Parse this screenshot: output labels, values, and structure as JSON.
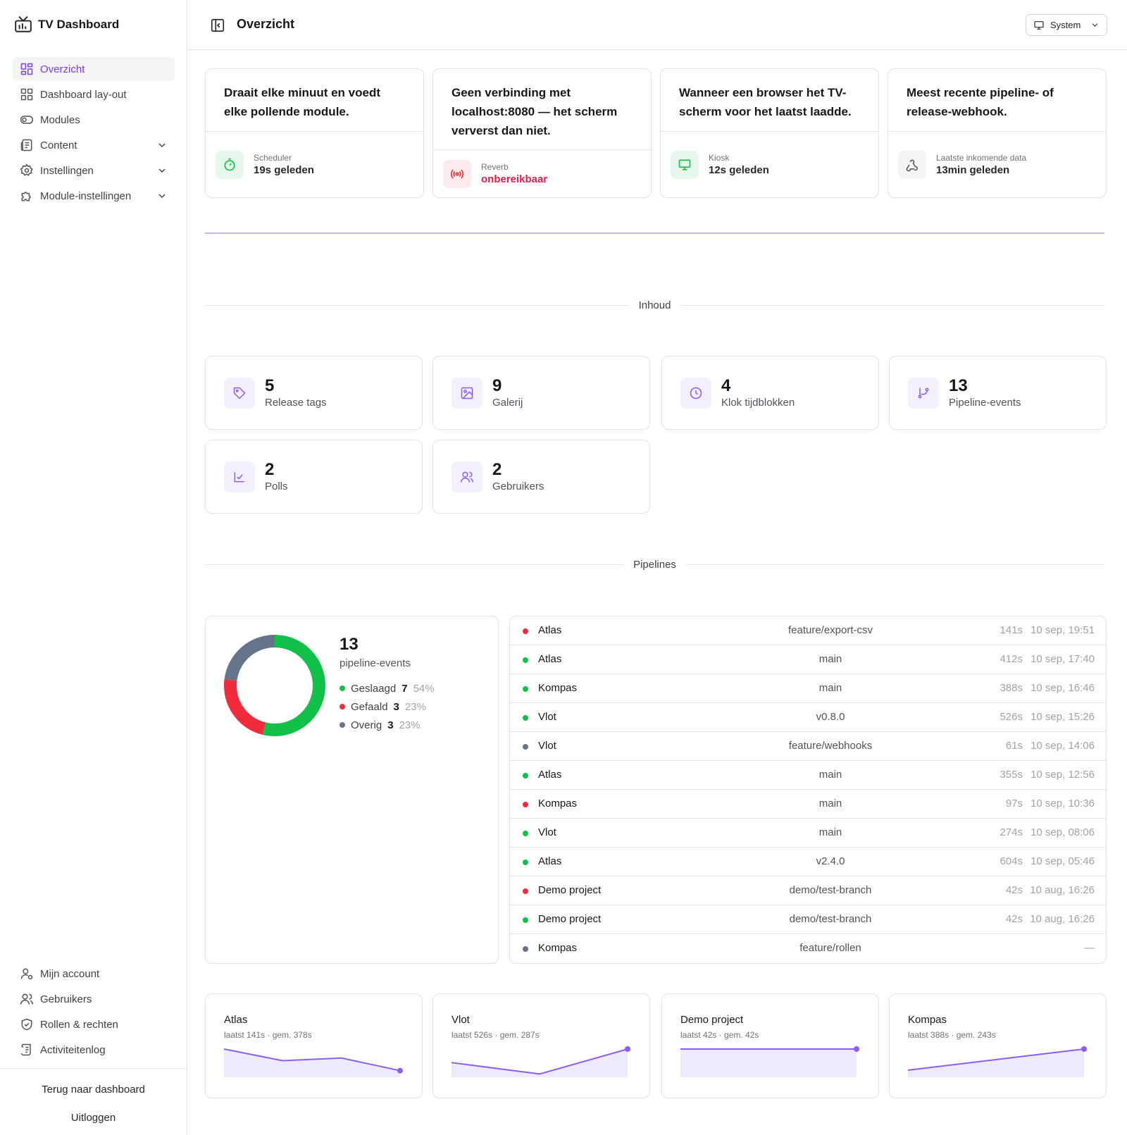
{
  "app": {
    "name": "TV Dashboard"
  },
  "nav": {
    "items": [
      {
        "label": "Overzicht",
        "icon": "grid-icon",
        "active": true,
        "expandable": false
      },
      {
        "label": "Dashboard lay-out",
        "icon": "layout-icon",
        "active": false,
        "expandable": false
      },
      {
        "label": "Modules",
        "icon": "toggle-icon",
        "active": false,
        "expandable": false
      },
      {
        "label": "Content",
        "icon": "document-icon",
        "active": false,
        "expandable": true
      },
      {
        "label": "Instellingen",
        "icon": "gear-icon",
        "active": false,
        "expandable": true
      },
      {
        "label": "Module-instellingen",
        "icon": "puzzle-icon",
        "active": false,
        "expandable": true
      }
    ],
    "bottom": [
      {
        "label": "Mijn account",
        "icon": "user-icon"
      },
      {
        "label": "Gebruikers",
        "icon": "users-icon"
      },
      {
        "label": "Rollen & rechten",
        "icon": "shield-icon"
      },
      {
        "label": "Activiteitenlog",
        "icon": "scroll-icon"
      }
    ],
    "footer": {
      "back": "Terug naar dashboard",
      "logout": "Uitloggen"
    }
  },
  "header": {
    "title": "Overzicht",
    "theme": "System"
  },
  "status_cards": [
    {
      "desc": "Draait elke minuut en voedt elke pollende module.",
      "key": "Scheduler",
      "value": "19s geleden",
      "icon": "timer-icon",
      "tone": "ok"
    },
    {
      "desc": "Geen verbinding met localhost:8080 — het scherm ververst dan niet.",
      "key": "Reverb",
      "value": "onbereikbaar",
      "icon": "broadcast-icon",
      "tone": "error"
    },
    {
      "desc": "Wanneer een browser het TV-scherm voor het laatst laadde.",
      "key": "Kiosk",
      "value": "12s geleden",
      "icon": "monitor-icon",
      "tone": "ok"
    },
    {
      "desc": "Meest recente pipeline- of release-webhook.",
      "key": "Laatste inkomende data",
      "value": "13min geleden",
      "icon": "webhook-icon",
      "tone": "neutral"
    }
  ],
  "sections": {
    "content": "Inhoud",
    "pipelines": "Pipelines"
  },
  "stats": [
    {
      "value": "5",
      "label": "Release tags",
      "icon": "tag-icon"
    },
    {
      "value": "9",
      "label": "Galerij",
      "icon": "image-icon"
    },
    {
      "value": "4",
      "label": "Klok tijdblokken",
      "icon": "clock-icon"
    },
    {
      "value": "13",
      "label": "Pipeline-events",
      "icon": "git-branch-icon"
    },
    {
      "value": "2",
      "label": "Polls",
      "icon": "poll-icon"
    },
    {
      "value": "2",
      "label": "Gebruikers",
      "icon": "users-icon"
    }
  ],
  "colors": {
    "accent": "#7c3aed",
    "success": "#10c048",
    "failed": "#ef2b3c",
    "other": "#64748b"
  },
  "pipeline_summary": {
    "total": "13",
    "label": "pipeline-events",
    "legend": [
      {
        "name": "Geslaagd",
        "count": 7,
        "pct": "54%",
        "color": "#10c048"
      },
      {
        "name": "Gefaald",
        "count": 3,
        "pct": "23%",
        "color": "#ef2b3c"
      },
      {
        "name": "Overig",
        "count": 3,
        "pct": "23%",
        "color": "#64748b"
      }
    ]
  },
  "pipelines": [
    {
      "status": "failed",
      "project": "Atlas",
      "branch": "feature/export-csv",
      "duration": "141s",
      "time": "10 sep, 19:51"
    },
    {
      "status": "success",
      "project": "Atlas",
      "branch": "main",
      "duration": "412s",
      "time": "10 sep, 17:40"
    },
    {
      "status": "success",
      "project": "Kompas",
      "branch": "main",
      "duration": "388s",
      "time": "10 sep, 16:46"
    },
    {
      "status": "success",
      "project": "Vlot",
      "branch": "v0.8.0",
      "duration": "526s",
      "time": "10 sep, 15:26"
    },
    {
      "status": "other",
      "project": "Vlot",
      "branch": "feature/webhooks",
      "duration": "61s",
      "time": "10 sep, 14:06"
    },
    {
      "status": "success",
      "project": "Atlas",
      "branch": "main",
      "duration": "355s",
      "time": "10 sep, 12:56"
    },
    {
      "status": "failed",
      "project": "Kompas",
      "branch": "main",
      "duration": "97s",
      "time": "10 sep, 10:36"
    },
    {
      "status": "success",
      "project": "Vlot",
      "branch": "main",
      "duration": "274s",
      "time": "10 sep, 08:06"
    },
    {
      "status": "success",
      "project": "Atlas",
      "branch": "v2.4.0",
      "duration": "604s",
      "time": "10 sep, 05:46"
    },
    {
      "status": "failed",
      "project": "Demo project",
      "branch": "demo/test-branch",
      "duration": "42s",
      "time": "10 aug, 16:26"
    },
    {
      "status": "success",
      "project": "Demo project",
      "branch": "demo/test-branch",
      "duration": "42s",
      "time": "10 aug, 16:26"
    },
    {
      "status": "other",
      "project": "Kompas",
      "branch": "feature/rollen",
      "duration": "",
      "time": "—"
    }
  ],
  "sparklines": [
    {
      "project": "Atlas",
      "stat": "laatst 141s · gem. 378s",
      "values": [
        604,
        355,
        412,
        141
      ]
    },
    {
      "project": "Vlot",
      "stat": "laatst 526s · gem. 287s",
      "values": [
        274,
        61,
        526
      ]
    },
    {
      "project": "Demo project",
      "stat": "laatst 42s · gem. 42s",
      "values": [
        42,
        42
      ]
    },
    {
      "project": "Kompas",
      "stat": "laatst 388s · gem. 243s",
      "values": [
        97,
        388
      ]
    }
  ]
}
